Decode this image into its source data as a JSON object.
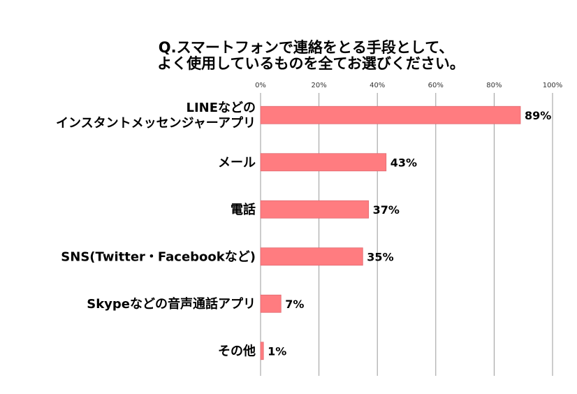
{
  "chart_data": {
    "type": "bar",
    "orientation": "horizontal",
    "title": [
      "Q.スマートフォンで連絡をとる手段として、",
      "よく使用しているものを全てお選びください。"
    ],
    "xlim": [
      0,
      100
    ],
    "ticks": [
      "0%",
      "20%",
      "40%",
      "60%",
      "80%",
      "100%"
    ],
    "tick_values": [
      0,
      20,
      40,
      60,
      80,
      100
    ],
    "categories": [
      [
        "LINEなどの",
        "インスタントメッセンジャーアプリ"
      ],
      [
        "メール"
      ],
      [
        "電話"
      ],
      [
        "SNS(Twitter・Facebookなど)"
      ],
      [
        "Skypeなどの音声通話アプリ"
      ],
      [
        "その他"
      ]
    ],
    "values": [
      89,
      43,
      37,
      35,
      7,
      1
    ],
    "value_labels": [
      "89%",
      "43%",
      "37%",
      "35%",
      "7%",
      "1%"
    ],
    "grid": true,
    "axis_position": "top",
    "bar_color": "#ff7c80",
    "bar_edge_color": "#e06a70",
    "grid_color": "#9a9a9a"
  }
}
